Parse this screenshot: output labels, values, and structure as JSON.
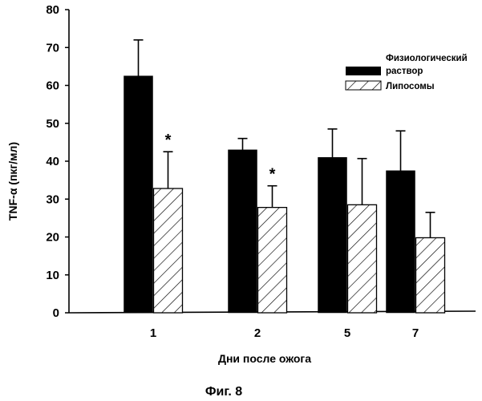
{
  "chart_data": {
    "type": "bar",
    "title": "",
    "xlabel": "Дни после ожога",
    "ylabel": "TNF-α (пкг/мл)",
    "ylim": [
      0,
      80
    ],
    "yticks": [
      "0",
      "10",
      "20",
      "30",
      "40",
      "50",
      "60",
      "70",
      "80"
    ],
    "categories": [
      "1",
      "2",
      "5",
      "7"
    ],
    "series": [
      {
        "name": "Физиологический раствор",
        "values": [
          62.5,
          43,
          41,
          37.5
        ],
        "error_upper": [
          72,
          46,
          48.5,
          48
        ],
        "fill": "solid",
        "color": "#000000"
      },
      {
        "name": "Липосомы",
        "values": [
          32.8,
          27.8,
          28.5,
          19.8
        ],
        "error_upper": [
          42.5,
          33.5,
          40.7,
          26.5
        ],
        "fill": "hatched",
        "color": "#000000"
      }
    ],
    "significance_markers": [
      "*",
      "*",
      "",
      ""
    ],
    "legend_position": "top-right",
    "grid": false
  },
  "caption": "Фиг. 8"
}
